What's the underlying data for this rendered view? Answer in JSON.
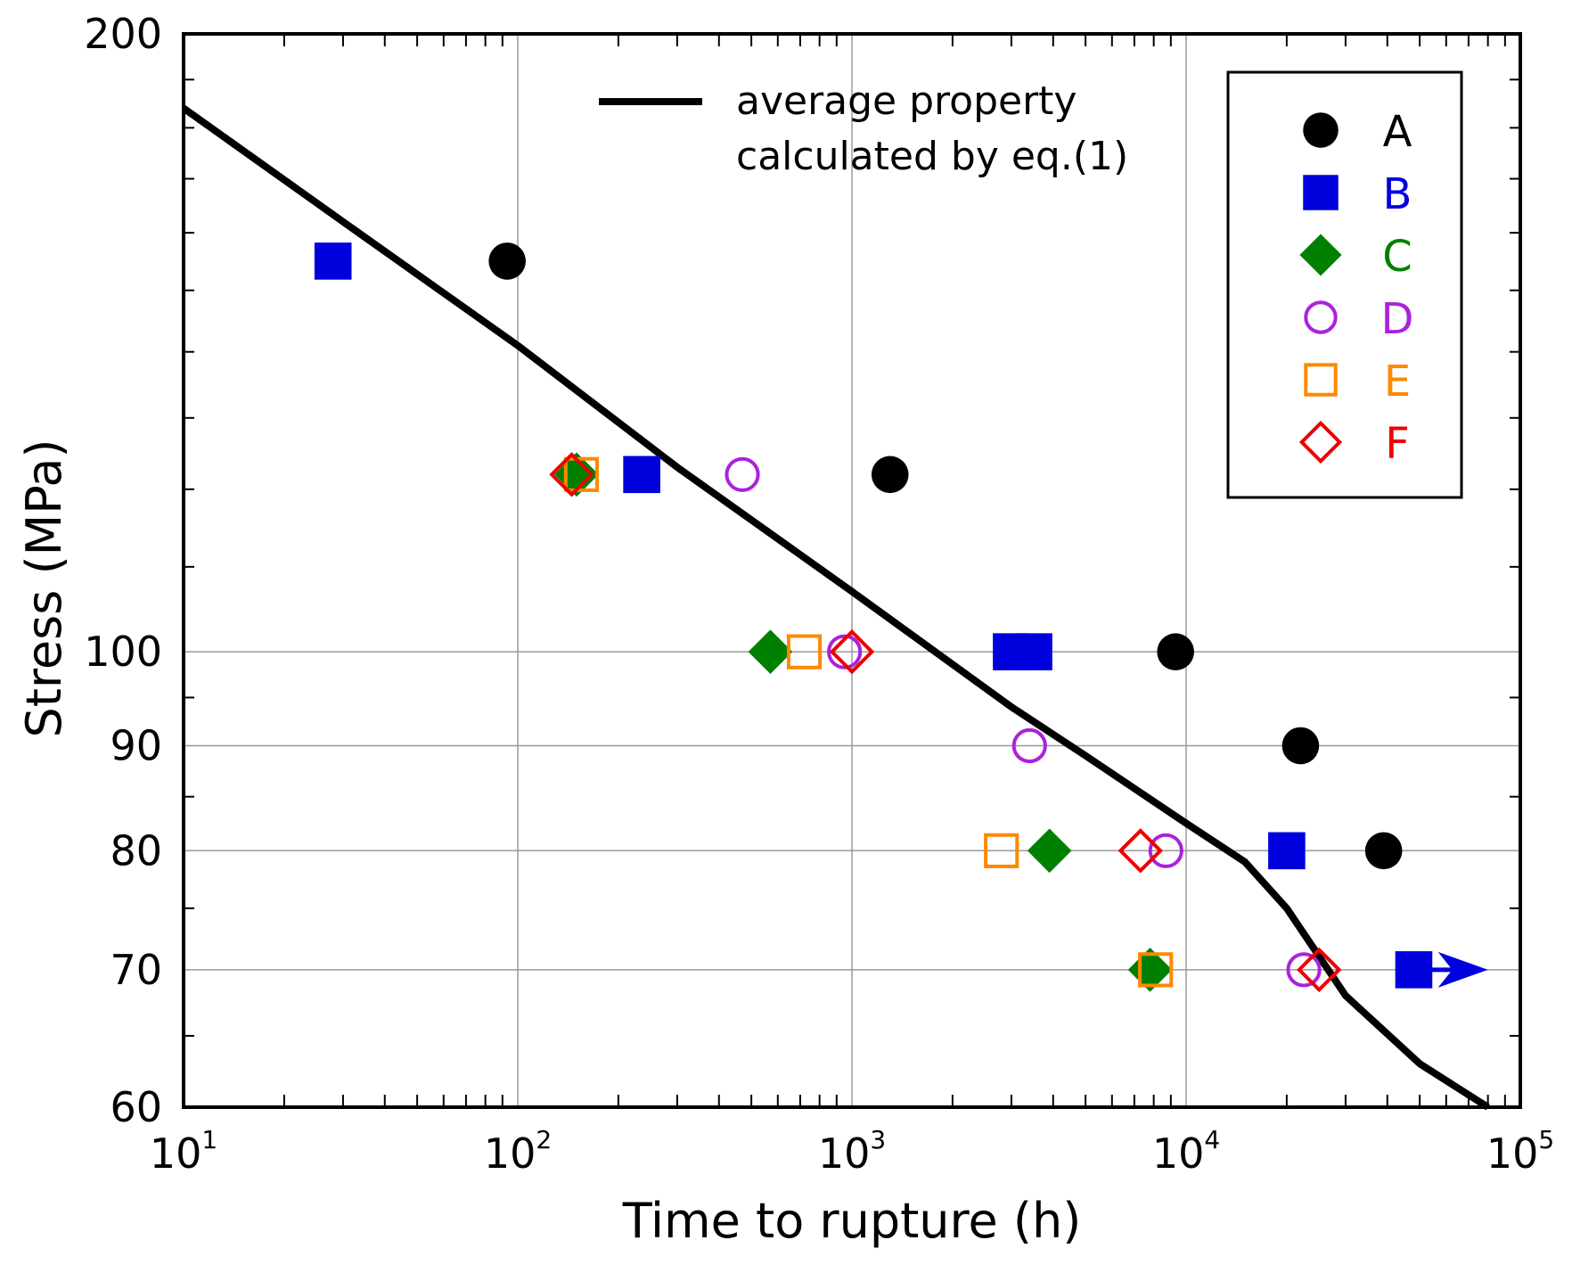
{
  "chart_data": {
    "type": "scatter",
    "xlabel": "Time to rupture (h)",
    "ylabel": "Stress (MPa)",
    "x_scale": "log",
    "y_scale": "log",
    "xlim": [
      10,
      100000
    ],
    "ylim": [
      60,
      200
    ],
    "x_ticks": [
      {
        "value": 10,
        "base": "10",
        "exp": "1"
      },
      {
        "value": 100,
        "base": "10",
        "exp": "2"
      },
      {
        "value": 1000,
        "base": "10",
        "exp": "3"
      },
      {
        "value": 10000,
        "base": "10",
        "exp": "4"
      },
      {
        "value": 100000,
        "base": "10",
        "exp": "5"
      }
    ],
    "y_ticks": [
      {
        "value": 200,
        "label": "200"
      },
      {
        "value": 100,
        "label": "100"
      },
      {
        "value": 90,
        "label": "90"
      },
      {
        "value": 80,
        "label": "80"
      },
      {
        "value": 70,
        "label": "70"
      },
      {
        "value": 60,
        "label": "60"
      }
    ],
    "grid": true,
    "legend_position": "top-right",
    "line_series": {
      "name": "average property calculated by eq.(1)",
      "label_lines": [
        "average property",
        "calculated by eq.(1)"
      ],
      "color": "#000000",
      "points": [
        [
          10,
          184
        ],
        [
          30,
          162
        ],
        [
          100,
          141
        ],
        [
          300,
          123
        ],
        [
          1000,
          107
        ],
        [
          3000,
          94
        ],
        [
          5000,
          89
        ],
        [
          10000,
          82.5
        ],
        [
          15000,
          79
        ],
        [
          20000,
          75
        ],
        [
          30000,
          68
        ],
        [
          50000,
          63
        ],
        [
          80000,
          60
        ]
      ]
    },
    "series": [
      {
        "name": "A",
        "marker": "circle",
        "filled": true,
        "color": "#000000",
        "points": [
          [
            93,
            155
          ],
          [
            1300,
            122
          ],
          [
            9300,
            100
          ],
          [
            22000,
            90
          ],
          [
            39000,
            80
          ]
        ]
      },
      {
        "name": "B",
        "marker": "square",
        "filled": true,
        "color": "#0000dd",
        "points": [
          [
            28,
            155
          ],
          [
            235,
            122
          ],
          [
            3000,
            100
          ],
          [
            3500,
            100
          ],
          [
            20000,
            80
          ],
          [
            48000,
            70
          ]
        ],
        "runout": {
          "from": [
            48000,
            70
          ],
          "to": [
            80000,
            70
          ]
        }
      },
      {
        "name": "C",
        "marker": "diamond",
        "filled": true,
        "color": "#008000",
        "points": [
          [
            150,
            122
          ],
          [
            570,
            100
          ],
          [
            3900,
            80
          ],
          [
            7800,
            70
          ]
        ]
      },
      {
        "name": "D",
        "marker": "circle",
        "filled": false,
        "color": "#aa22dd",
        "points": [
          [
            470,
            122
          ],
          [
            950,
            100
          ],
          [
            3400,
            90
          ],
          [
            8700,
            80
          ],
          [
            22500,
            70
          ]
        ]
      },
      {
        "name": "E",
        "marker": "square",
        "filled": false,
        "color": "#ff8800",
        "points": [
          [
            155,
            122
          ],
          [
            720,
            100
          ],
          [
            2800,
            80
          ],
          [
            8100,
            70
          ]
        ]
      },
      {
        "name": "F",
        "marker": "diamond",
        "filled": false,
        "color": "#ee0000",
        "points": [
          [
            145,
            122
          ],
          [
            1000,
            100
          ],
          [
            7300,
            80
          ],
          [
            25000,
            70
          ]
        ]
      }
    ]
  }
}
